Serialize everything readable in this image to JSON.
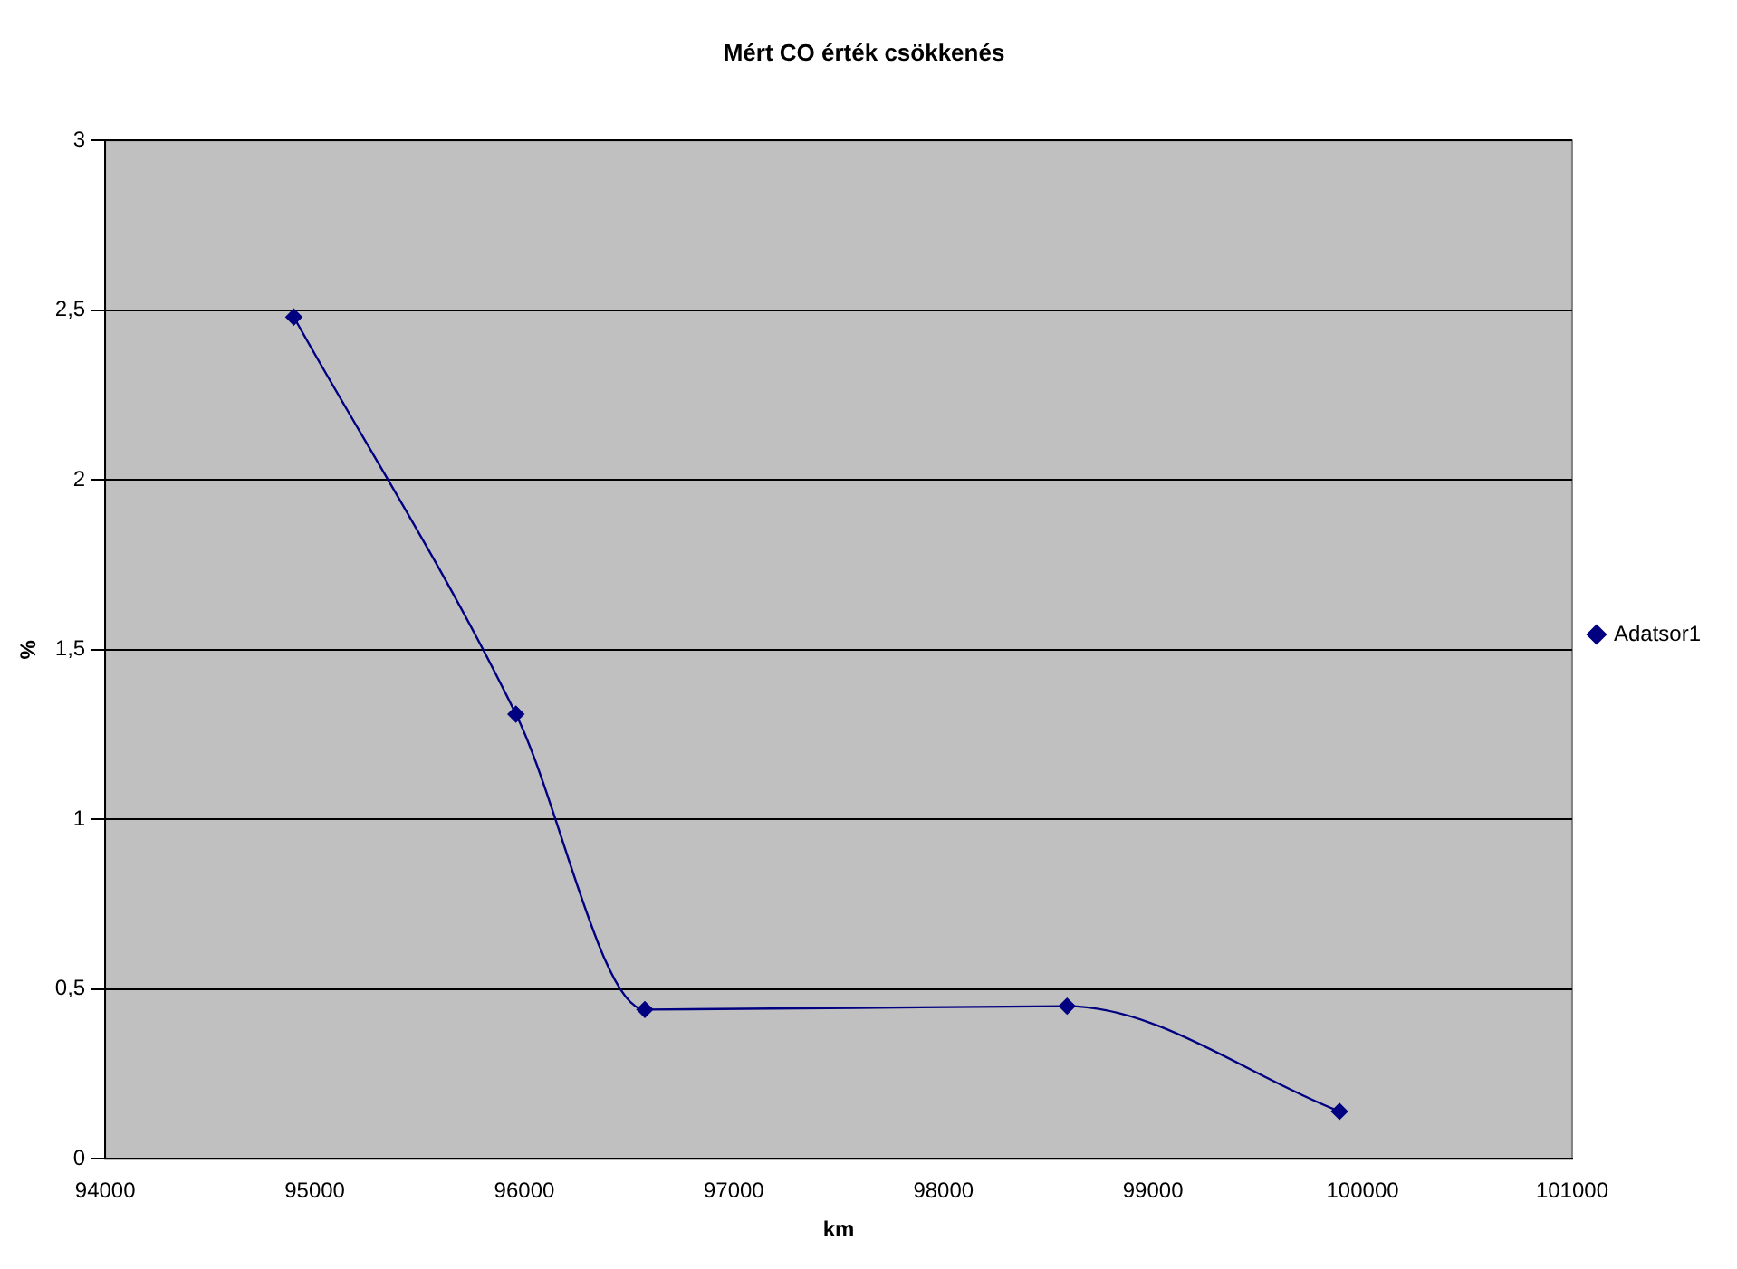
{
  "chart_data": {
    "type": "line",
    "title": "Mért CO érték csökkenés",
    "xlabel": "km",
    "ylabel": "%",
    "x": [
      94900,
      95960,
      96575,
      98590,
      99890
    ],
    "series": [
      {
        "name": "Adatsor1",
        "color": "#000080",
        "values": [
          2.48,
          1.31,
          0.44,
          0.45,
          0.14
        ]
      }
    ],
    "xlim": [
      94000,
      101000
    ],
    "xticks": [
      94000,
      95000,
      96000,
      97000,
      98000,
      99000,
      100000,
      101000
    ],
    "ylim": [
      0,
      3
    ],
    "yticks": [
      0,
      {
        "value": 0.5,
        "label": "0,5"
      },
      1,
      {
        "value": 1.5,
        "label": "1,5"
      },
      2,
      {
        "value": 2.5,
        "label": "2,5"
      },
      3
    ],
    "grid": "y",
    "legend": "right",
    "marker": "diamond",
    "line_style": "solid"
  }
}
